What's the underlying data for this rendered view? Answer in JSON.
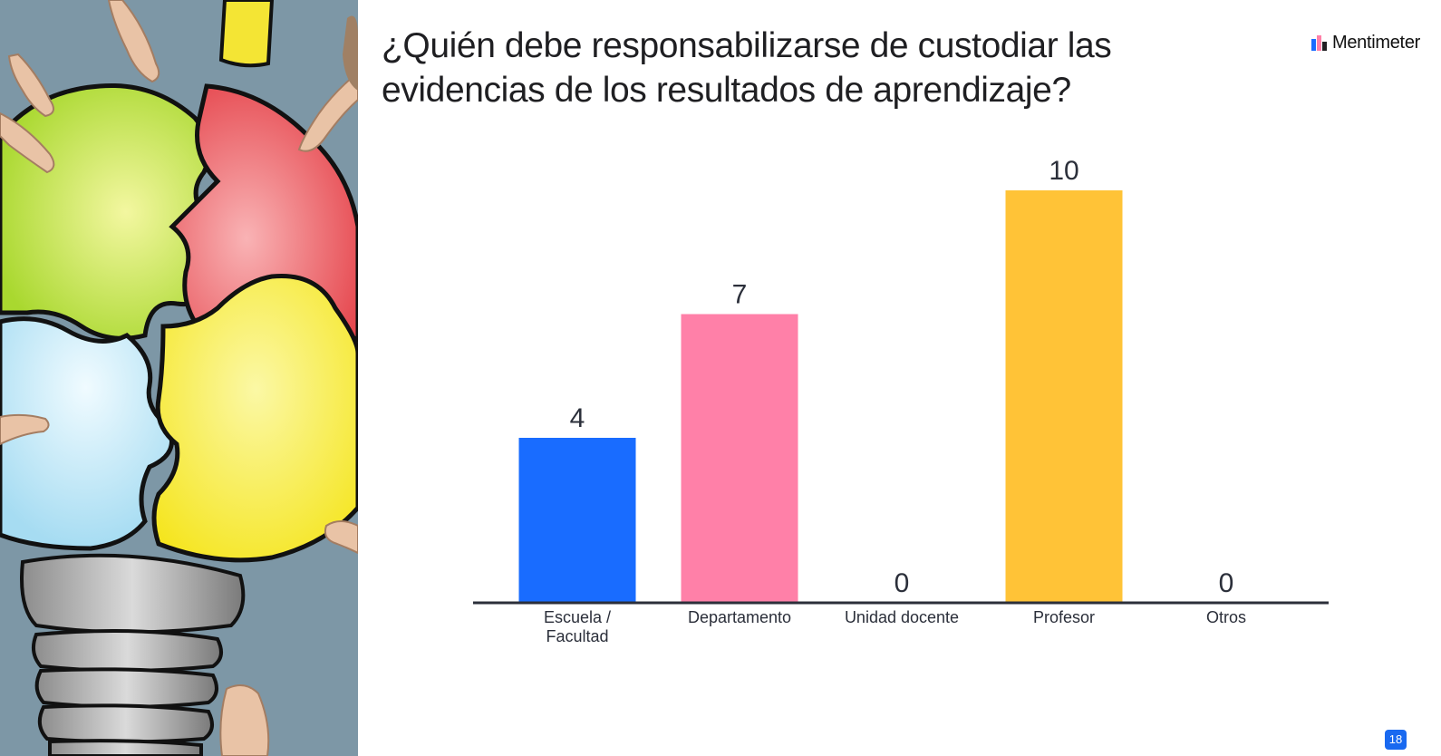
{
  "slide": {
    "title": "¿Quién debe responsabilizarse de custodiar las evidencias de los resultados de aprendizaje?",
    "brand": "Mentimeter",
    "page_number": "18"
  },
  "illustration": {
    "description_icon": "puzzle-lightbulb-icon"
  },
  "colors": {
    "background": "#ffffff",
    "text": "#1f1f22",
    "axis": "#2b2f3a",
    "badge": "#1969f0"
  },
  "chart_data": {
    "type": "bar",
    "title": "",
    "xlabel": "",
    "ylabel": "",
    "ylim": [
      0,
      10
    ],
    "grid": false,
    "categories": [
      [
        "Escuela /",
        "Facultad"
      ],
      [
        "Departamento"
      ],
      [
        "Unidad docente"
      ],
      [
        "Profesor"
      ],
      [
        "Otros"
      ]
    ],
    "values": [
      4,
      7,
      0,
      10,
      0
    ],
    "value_labels": [
      "4",
      "7",
      "0",
      "10",
      "0"
    ],
    "bar_colors": [
      "#196cff",
      "#ff80a8",
      "#7fd6b8",
      "#ffc337",
      "#9b8cf2"
    ]
  }
}
